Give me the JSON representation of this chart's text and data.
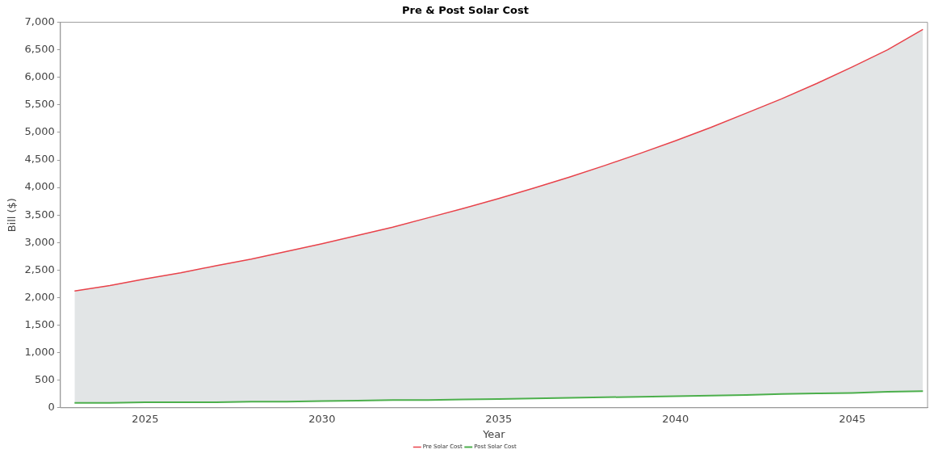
{
  "chart_data": {
    "type": "line",
    "title": "Pre & Post Solar Cost",
    "xlabel": "Year",
    "ylabel": "Bill ($)",
    "x": [
      2023,
      2024,
      2025,
      2026,
      2027,
      2028,
      2029,
      2030,
      2031,
      2032,
      2033,
      2034,
      2035,
      2036,
      2037,
      2038,
      2039,
      2040,
      2041,
      2042,
      2043,
      2044,
      2045,
      2046,
      2047
    ],
    "series": [
      {
        "name": "Pre Solar Cost",
        "type": "area",
        "color": "#e8424a",
        "values": [
          2120,
          2220,
          2340,
          2450,
          2580,
          2700,
          2840,
          2980,
          3130,
          3280,
          3450,
          3620,
          3800,
          3990,
          4190,
          4400,
          4620,
          4850,
          5090,
          5350,
          5610,
          5890,
          6190,
          6500,
          6870
        ]
      },
      {
        "name": "Post Solar Cost",
        "type": "line",
        "color": "#4caf4c",
        "values": [
          90,
          90,
          100,
          100,
          100,
          110,
          110,
          120,
          130,
          140,
          140,
          150,
          160,
          170,
          180,
          190,
          200,
          210,
          220,
          230,
          250,
          260,
          270,
          290,
          300
        ]
      }
    ],
    "xlim": [
      2022.6,
      2047.13
    ],
    "xticks": [
      2025,
      2030,
      2035,
      2040,
      2045
    ],
    "ylim": [
      0,
      7000
    ],
    "yticks": [
      0,
      {
        "value": 500,
        "label": "500"
      },
      {
        "value": 1000,
        "label": "1,000"
      },
      {
        "value": 1500,
        "label": "1,500"
      },
      {
        "value": 2000,
        "label": "2,000"
      },
      {
        "value": 2500,
        "label": "2,500"
      },
      {
        "value": 3000,
        "label": "3,000"
      },
      {
        "value": 3500,
        "label": "3,500"
      },
      {
        "value": 4000,
        "label": "4,000"
      },
      {
        "value": 4500,
        "label": "4,500"
      },
      {
        "value": 5000,
        "label": "5,000"
      },
      {
        "value": 5500,
        "label": "5,500"
      },
      {
        "value": 6000,
        "label": "6,000"
      },
      {
        "value": 6500,
        "label": "6,500"
      },
      {
        "value": 7000,
        "label": "7,000"
      }
    ],
    "grid": false,
    "legend": "bottom",
    "marker": "none",
    "line_style": "solid"
  }
}
